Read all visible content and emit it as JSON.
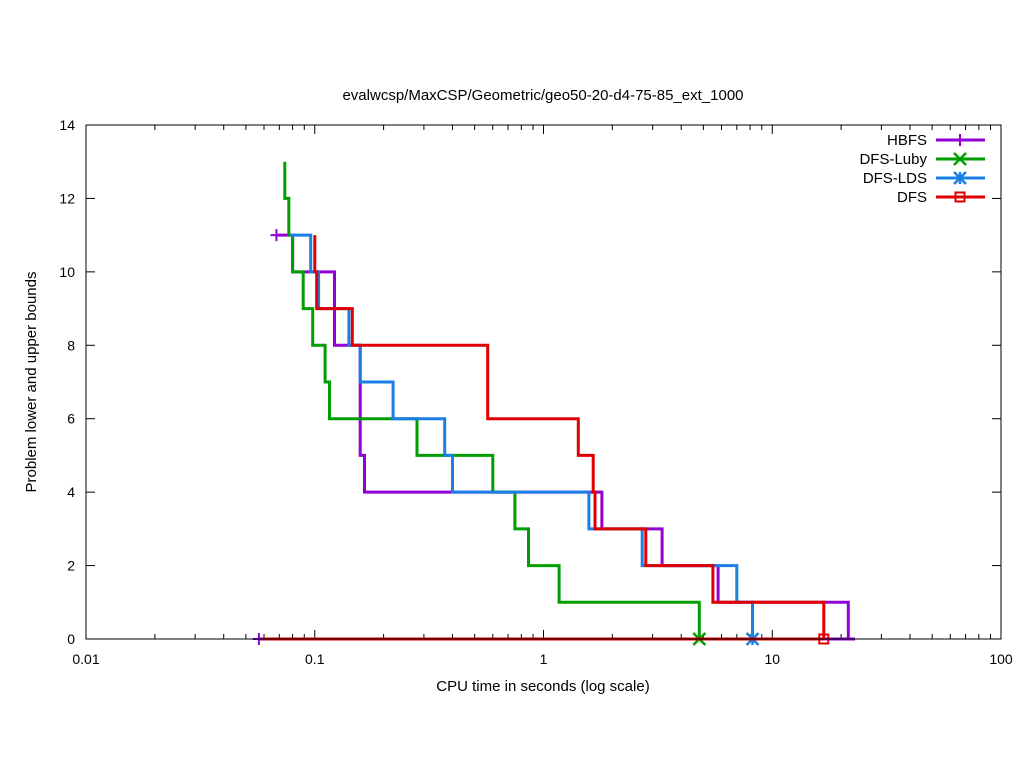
{
  "chart_data": {
    "type": "line",
    "title": "evalwcsp/MaxCSP/Geometric/geo50-20-d4-75-85_ext_1000",
    "xlabel": "CPU time in seconds (log scale)",
    "ylabel": "Problem lower and upper bounds",
    "xscale": "log",
    "xlim": [
      0.01,
      100
    ],
    "ylim": [
      0,
      14
    ],
    "x_ticks": [
      "0.01",
      "0.1",
      "1",
      "10",
      "100"
    ],
    "y_ticks": [
      "0",
      "2",
      "4",
      "6",
      "8",
      "10",
      "12",
      "14"
    ],
    "legend_position": "top-right",
    "series": [
      {
        "name": "HBFS",
        "color": "#9400d3",
        "marker": "plus",
        "upper": [
          [
            0.068,
            11
          ],
          [
            0.08,
            11
          ],
          [
            0.08,
            10
          ],
          [
            0.122,
            10
          ],
          [
            0.122,
            8
          ],
          [
            0.158,
            8
          ],
          [
            0.158,
            5
          ],
          [
            0.165,
            5
          ],
          [
            0.165,
            4
          ],
          [
            1.8,
            4
          ],
          [
            1.8,
            3
          ],
          [
            3.3,
            3
          ],
          [
            3.3,
            2
          ],
          [
            5.8,
            2
          ],
          [
            5.8,
            1
          ],
          [
            21.5,
            1
          ],
          [
            21.5,
            0
          ]
        ],
        "lower": [
          [
            0.057,
            0
          ],
          [
            23.0,
            0
          ]
        ],
        "marker_points": [
          [
            0.068,
            11
          ],
          [
            0.057,
            0
          ]
        ]
      },
      {
        "name": "DFS-Luby",
        "color": "#009e00",
        "marker": "x",
        "upper": [
          [
            0.074,
            13
          ],
          [
            0.074,
            12
          ],
          [
            0.077,
            12
          ],
          [
            0.077,
            11
          ],
          [
            0.08,
            11
          ],
          [
            0.08,
            10
          ],
          [
            0.089,
            10
          ],
          [
            0.089,
            9
          ],
          [
            0.098,
            9
          ],
          [
            0.098,
            8
          ],
          [
            0.111,
            8
          ],
          [
            0.111,
            7
          ],
          [
            0.116,
            7
          ],
          [
            0.116,
            6
          ],
          [
            0.28,
            6
          ],
          [
            0.28,
            5
          ],
          [
            0.6,
            5
          ],
          [
            0.6,
            4
          ],
          [
            0.75,
            4
          ],
          [
            0.75,
            3
          ],
          [
            0.86,
            3
          ],
          [
            0.86,
            2
          ],
          [
            1.17,
            2
          ],
          [
            1.17,
            1
          ],
          [
            4.8,
            1
          ],
          [
            4.8,
            0
          ]
        ],
        "lower": [
          [
            0.06,
            0
          ],
          [
            4.8,
            0
          ]
        ],
        "marker_points": [
          [
            4.8,
            0
          ]
        ]
      },
      {
        "name": "DFS-LDS",
        "color": "#1a7fe6",
        "marker": "star",
        "upper": [
          [
            0.078,
            11
          ],
          [
            0.096,
            11
          ],
          [
            0.096,
            10
          ],
          [
            0.104,
            10
          ],
          [
            0.104,
            9
          ],
          [
            0.141,
            9
          ],
          [
            0.141,
            8
          ],
          [
            0.158,
            8
          ],
          [
            0.158,
            7
          ],
          [
            0.22,
            7
          ],
          [
            0.22,
            6
          ],
          [
            0.37,
            6
          ],
          [
            0.37,
            5
          ],
          [
            0.4,
            5
          ],
          [
            0.4,
            4
          ],
          [
            1.58,
            4
          ],
          [
            1.58,
            3
          ],
          [
            2.7,
            3
          ],
          [
            2.7,
            2
          ],
          [
            7.0,
            2
          ],
          [
            7.0,
            1
          ],
          [
            8.2,
            1
          ],
          [
            8.2,
            0
          ]
        ],
        "lower": [
          [
            0.06,
            0
          ],
          [
            8.2,
            0
          ]
        ],
        "marker_points": [
          [
            8.2,
            0
          ]
        ]
      },
      {
        "name": "DFS",
        "color": "#e00000",
        "marker": "square",
        "upper": [
          [
            0.1,
            11
          ],
          [
            0.1,
            10
          ],
          [
            0.102,
            10
          ],
          [
            0.102,
            9
          ],
          [
            0.146,
            9
          ],
          [
            0.146,
            8
          ],
          [
            0.57,
            8
          ],
          [
            0.57,
            6
          ],
          [
            1.42,
            6
          ],
          [
            1.42,
            5
          ],
          [
            1.65,
            5
          ],
          [
            1.65,
            4
          ],
          [
            1.68,
            4
          ],
          [
            1.68,
            3
          ],
          [
            2.8,
            3
          ],
          [
            2.8,
            2
          ],
          [
            5.5,
            2
          ],
          [
            5.5,
            1
          ],
          [
            16.8,
            1
          ],
          [
            16.8,
            0
          ]
        ],
        "lower": [
          [
            0.06,
            0
          ],
          [
            16.8,
            0
          ]
        ],
        "marker_points": [
          [
            16.8,
            0
          ]
        ]
      }
    ]
  }
}
